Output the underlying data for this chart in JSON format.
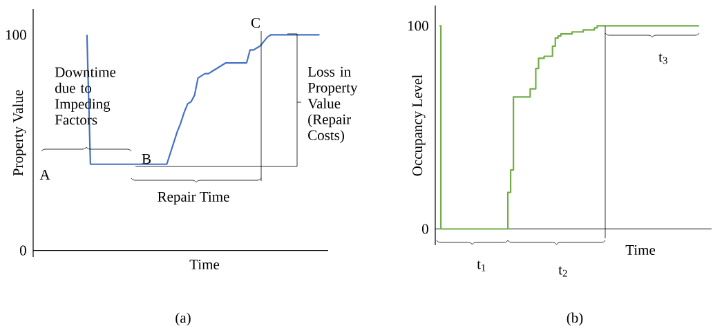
{
  "chart_data": [
    {
      "type": "line",
      "title": "(a)",
      "xlabel": "Time",
      "ylabel": "Property Value",
      "ylim": [
        -3,
        112
      ],
      "yticks": [
        0,
        100
      ],
      "categories": [
        null,
        null,
        null,
        null,
        null,
        null,
        null,
        null,
        null,
        null,
        null,
        null,
        null,
        null,
        null,
        null,
        null,
        null,
        null,
        null,
        null,
        null,
        null,
        null,
        null,
        null,
        null,
        null,
        null,
        null,
        null,
        null,
        null,
        null,
        null,
        null,
        null,
        null,
        null,
        null,
        null,
        null,
        null,
        null,
        null,
        null,
        null,
        null,
        null,
        null,
        null,
        null,
        null,
        null,
        null,
        null,
        null,
        null,
        null,
        null,
        null,
        null,
        null,
        null,
        null,
        null,
        null,
        null,
        null,
        null,
        null,
        null,
        null,
        null,
        null,
        null,
        null,
        null,
        null,
        null,
        null,
        null,
        null,
        null,
        null
      ],
      "series": [
        {
          "color": "#4472c4",
          "values": [
            null,
            null,
            null,
            null,
            null,
            null,
            null,
            null,
            null,
            null,
            null,
            null,
            null,
            null,
            null,
            100,
            40,
            40,
            40,
            40,
            40,
            40,
            40,
            40,
            40,
            40,
            40,
            40,
            40,
            40,
            40,
            40,
            40,
            40,
            40,
            40,
            40,
            40,
            40,
            45,
            50,
            55,
            59,
            64,
            68,
            69,
            72,
            80,
            81,
            82,
            82,
            83,
            84,
            85,
            86,
            87,
            87,
            87,
            87,
            87,
            87,
            87,
            93,
            93,
            94,
            95,
            97,
            99,
            100,
            100,
            100,
            100,
            100,
            100,
            100,
            100,
            100,
            100,
            100,
            100,
            100,
            100,
            100,
            null,
            null
          ]
        }
      ],
      "annotations": [
        "Downtime due to Impeding Factors",
        "A",
        "B",
        "C",
        "Repair Time",
        "Loss in Property Value (Repair Costs)"
      ]
    },
    {
      "type": "step",
      "title": "(b)",
      "xlabel": "Time",
      "ylabel": "Occupancy Level",
      "ylim": [
        -8,
        110
      ],
      "yticks": [
        0,
        100
      ],
      "categories": [
        null,
        null,
        null,
        null,
        null,
        null,
        null,
        null,
        null,
        null,
        null,
        null,
        null,
        null,
        null,
        null,
        null,
        null,
        null,
        null,
        null,
        null,
        null,
        null,
        null,
        null,
        null,
        null,
        null,
        null,
        null,
        null,
        null,
        null,
        null,
        null,
        null,
        null,
        null,
        null,
        null,
        null,
        null,
        null,
        null,
        null,
        null,
        null,
        null,
        null,
        null,
        null,
        null,
        null,
        null,
        null,
        null,
        null,
        null,
        null,
        null,
        null,
        null,
        null,
        null,
        null,
        null,
        null,
        null,
        null,
        null,
        null,
        null,
        null,
        null,
        null,
        null,
        null,
        null,
        null,
        null,
        null,
        null,
        null,
        null,
        null,
        null,
        null,
        null,
        null,
        null,
        null,
        null,
        null,
        null,
        null,
        null,
        null,
        null
      ],
      "series": [
        {
          "color": "#70ad47",
          "values": [
            null,
            100,
            0,
            0,
            0,
            0,
            0,
            0,
            0,
            0,
            0,
            0,
            0,
            0,
            0,
            0,
            0,
            0,
            0,
            0,
            0,
            0,
            0,
            0,
            0,
            0,
            18,
            29,
            65,
            65,
            65,
            65,
            65,
            65,
            69,
            69,
            79,
            84,
            84,
            85,
            85,
            85,
            90,
            94,
            95,
            96,
            96,
            96,
            96,
            97,
            97,
            97,
            97,
            98,
            98,
            98,
            98,
            99,
            100,
            100,
            100,
            100,
            100,
            100,
            100,
            100,
            100,
            100,
            100,
            100,
            100,
            100,
            100,
            100,
            100,
            100,
            100,
            100,
            100,
            100,
            100,
            100,
            100,
            100,
            100,
            100,
            100,
            100,
            100,
            100,
            100,
            100,
            100,
            100,
            100,
            null,
            null,
            null,
            null
          ]
        }
      ],
      "annotations": [
        "t$_{1}$",
        "t$_{2}$",
        "t$_{3}$"
      ]
    }
  ]
}
